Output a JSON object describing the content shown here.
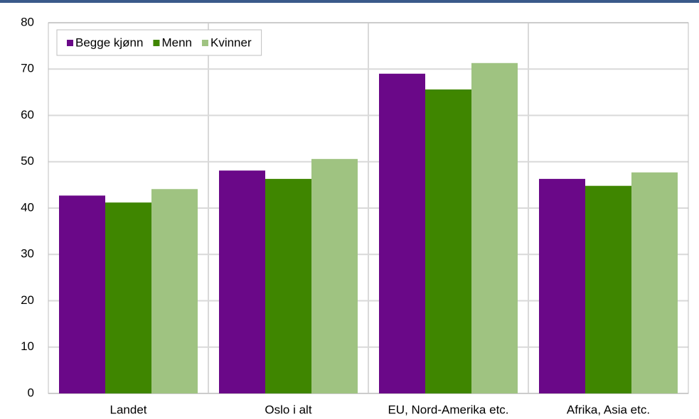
{
  "chart_data": {
    "type": "bar",
    "categories": [
      "Landet",
      "Oslo i alt",
      "EU, Nord-Amerika etc.",
      "Afrika, Asia etc."
    ],
    "series": [
      {
        "name": "Begge kjønn",
        "color": "#6a0888",
        "values": [
          42.7,
          48.1,
          69.0,
          46.3
        ]
      },
      {
        "name": "Menn",
        "color": "#3f8600",
        "values": [
          41.2,
          46.3,
          65.6,
          44.8
        ]
      },
      {
        "name": "Kvinner",
        "color": "#9fc381",
        "values": [
          44.1,
          50.6,
          71.3,
          47.7
        ]
      }
    ],
    "ylim": [
      0,
      80
    ],
    "yticks": [
      0,
      10,
      20,
      30,
      40,
      50,
      60,
      70,
      80
    ],
    "grid": true,
    "legend": "top-left"
  }
}
